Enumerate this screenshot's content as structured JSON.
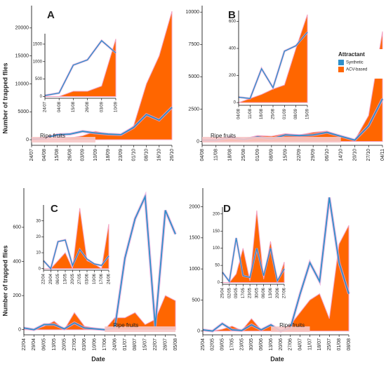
{
  "chart_data": [
    {
      "type": "line",
      "title": "A",
      "ylabel": "Number of trapped flies",
      "categories": [
        "24/07",
        "04/08",
        "15/08",
        "26/08",
        "03/09",
        "10/09",
        "18/09",
        "23/09",
        "01/10",
        "08/10",
        "16/10",
        "26/10"
      ],
      "series": [
        {
          "name": "Synthetic",
          "color": "#2f8fc9",
          "style": "line",
          "values": [
            100,
            200,
            900,
            1000,
            1500,
            1200,
            1000,
            900,
            2200,
            4500,
            3500,
            5800
          ]
        },
        {
          "name": "ACV-based",
          "color": "#ff6600",
          "style": "area",
          "values": [
            0,
            0,
            100,
            300,
            700,
            1500,
            1000,
            800,
            2500,
            10000,
            15000,
            23000
          ]
        }
      ],
      "ylim": [
        -1000,
        24000
      ],
      "yticks": [
        0,
        5000,
        10000,
        15000,
        20000
      ],
      "annotation": {
        "text": "Ripe fruits",
        "from": "24/07",
        "to": "10/09"
      },
      "inset": {
        "categories": [
          "24/07",
          "04/08",
          "15/08",
          "26/08",
          "03/09",
          "10/09"
        ],
        "series": [
          {
            "name": "Synthetic",
            "color": "#2f8fc9",
            "style": "line",
            "values": [
              30,
              100,
              900,
              1050,
              1600,
              1250
            ]
          },
          {
            "name": "ACV-based",
            "color": "#ff6600",
            "style": "area",
            "values": [
              0,
              0,
              150,
              150,
              300,
              1650
            ]
          }
        ],
        "ylim": [
          -50,
          1800
        ],
        "yticks": [
          0,
          500,
          1000,
          1500
        ]
      }
    },
    {
      "type": "line",
      "title": "B",
      "legend_title": "Attractant",
      "categories": [
        "04/08",
        "11/08",
        "18/08",
        "25/08",
        "01/09",
        "08/09",
        "15/09",
        "22/09",
        "29/09",
        "06/10",
        "14/10",
        "20/10",
        "27/10",
        "04/11"
      ],
      "series": [
        {
          "name": "Synthetic",
          "color": "#2f8fc9",
          "style": "line",
          "values": [
            100,
            100,
            300,
            150,
            350,
            200,
            500,
            450,
            500,
            700,
            400,
            100,
            1200,
            3300
          ]
        },
        {
          "name": "ACV-based",
          "color": "#ff6600",
          "style": "area",
          "values": [
            50,
            50,
            200,
            200,
            450,
            400,
            600,
            500,
            700,
            800,
            400,
            100,
            2000,
            8500
          ]
        }
      ],
      "ylim": [
        -300,
        10500
      ],
      "yticks": [
        0,
        2500,
        5000,
        7500,
        10000
      ],
      "annotation": {
        "text": "Ripe fruits",
        "from": "04/08",
        "to": "14/10"
      },
      "inset": {
        "categories": [
          "04/08",
          "11/08",
          "18/08",
          "25/08",
          "01/09",
          "08/09",
          "15/09"
        ],
        "series": [
          {
            "name": "Synthetic",
            "color": "#2f8fc9",
            "style": "line",
            "values": [
              40,
              30,
              250,
              110,
              380,
              420,
              520
            ]
          },
          {
            "name": "ACV-based",
            "color": "#ff6600",
            "style": "area",
            "values": [
              0,
              30,
              60,
              100,
              130,
              400,
              650
            ]
          }
        ],
        "ylim": [
          -20,
          680
        ],
        "yticks": [
          0,
          200,
          400,
          600
        ]
      }
    },
    {
      "type": "line",
      "title": "C",
      "ylabel": "Number of trapped flies",
      "xlabel": "Date",
      "categories": [
        "22/04",
        "29/04",
        "06/05",
        "13/05",
        "20/05",
        "27/05",
        "03/06",
        "10/06",
        "17/06",
        "24/06",
        "01/07",
        "08/07",
        "15/07",
        "22/07",
        "28/07",
        "05/08"
      ],
      "series": [
        {
          "name": "Synthetic",
          "color": "#2f8fc9",
          "style": "line",
          "values": [
            10,
            0,
            30,
            30,
            5,
            40,
            10,
            5,
            0,
            10,
            420,
            650,
            780,
            20,
            700,
            560
          ]
        },
        {
          "name": "ACV-based",
          "color": "#ff6600",
          "style": "area",
          "values": [
            0,
            0,
            20,
            50,
            0,
            100,
            20,
            10,
            0,
            70,
            70,
            100,
            30,
            60,
            200,
            170
          ]
        }
      ],
      "ylim": [
        -30,
        830
      ],
      "yticks": [
        0,
        200,
        400,
        600
      ],
      "annotation": {
        "text": "Ripe fruits",
        "from": "17/06",
        "to": "05/08"
      },
      "inset": {
        "categories": [
          "22/04",
          "29/04",
          "06/05",
          "13/05",
          "20/05",
          "27/05",
          "03/06",
          "10/06",
          "17/06",
          "24/06"
        ],
        "series": [
          {
            "name": "Synthetic",
            "color": "#2f8fc9",
            "style": "line",
            "values": [
              5,
              0,
              17,
              18,
              2,
              12,
              6,
              3,
              2,
              8
            ]
          },
          {
            "name": "ACV-based",
            "color": "#ff6600",
            "style": "area",
            "values": [
              0,
              0,
              5,
              10,
              0,
              38,
              5,
              3,
              0,
              28
            ]
          }
        ],
        "ylim": [
          -1,
          40
        ],
        "yticks": [
          0,
          10,
          20,
          30
        ]
      }
    },
    {
      "type": "line",
      "title": "D",
      "xlabel": "Date",
      "categories": [
        "25/04",
        "02/05",
        "09/05",
        "17/05",
        "23/05",
        "30/05",
        "06/06",
        "13/06",
        "20/06",
        "27/06",
        "04/07",
        "11/07",
        "18/07",
        "25/07",
        "01/08",
        "08/08"
      ],
      "series": [
        {
          "name": "Synthetic",
          "color": "#2f8fc9",
          "style": "line",
          "values": [
            20,
            0,
            120,
            20,
            10,
            100,
            20,
            100,
            0,
            50,
            600,
            1100,
            800,
            2150,
            1100,
            600
          ]
        },
        {
          "name": "ACV-based",
          "color": "#ff6600",
          "style": "area",
          "values": [
            0,
            0,
            30,
            80,
            10,
            200,
            20,
            100,
            0,
            100,
            300,
            500,
            600,
            200,
            1400,
            1700
          ]
        }
      ],
      "ylim": [
        -60,
        2300
      ],
      "yticks": [
        0,
        500,
        1000,
        1500,
        2000
      ],
      "annotation": {
        "text": "Ripe fruits",
        "from": "13/06",
        "to": "11/07"
      },
      "inset": {
        "categories": [
          "25/04",
          "02/05",
          "09/05",
          "17/05",
          "23/05",
          "30/05",
          "06/06",
          "13/06",
          "20/06",
          "27/06"
        ],
        "series": [
          {
            "name": "Synthetic",
            "color": "#2f8fc9",
            "style": "line",
            "values": [
              30,
              3,
              130,
              20,
              15,
              100,
              20,
              100,
              5,
              40
            ]
          },
          {
            "name": "ACV-based",
            "color": "#ff6600",
            "style": "area",
            "values": [
              0,
              0,
              25,
              100,
              5,
              210,
              10,
              120,
              0,
              60
            ]
          }
        ],
        "ylim": [
          -5,
          220
        ],
        "yticks": [
          0,
          50,
          100,
          150,
          200
        ]
      }
    }
  ]
}
